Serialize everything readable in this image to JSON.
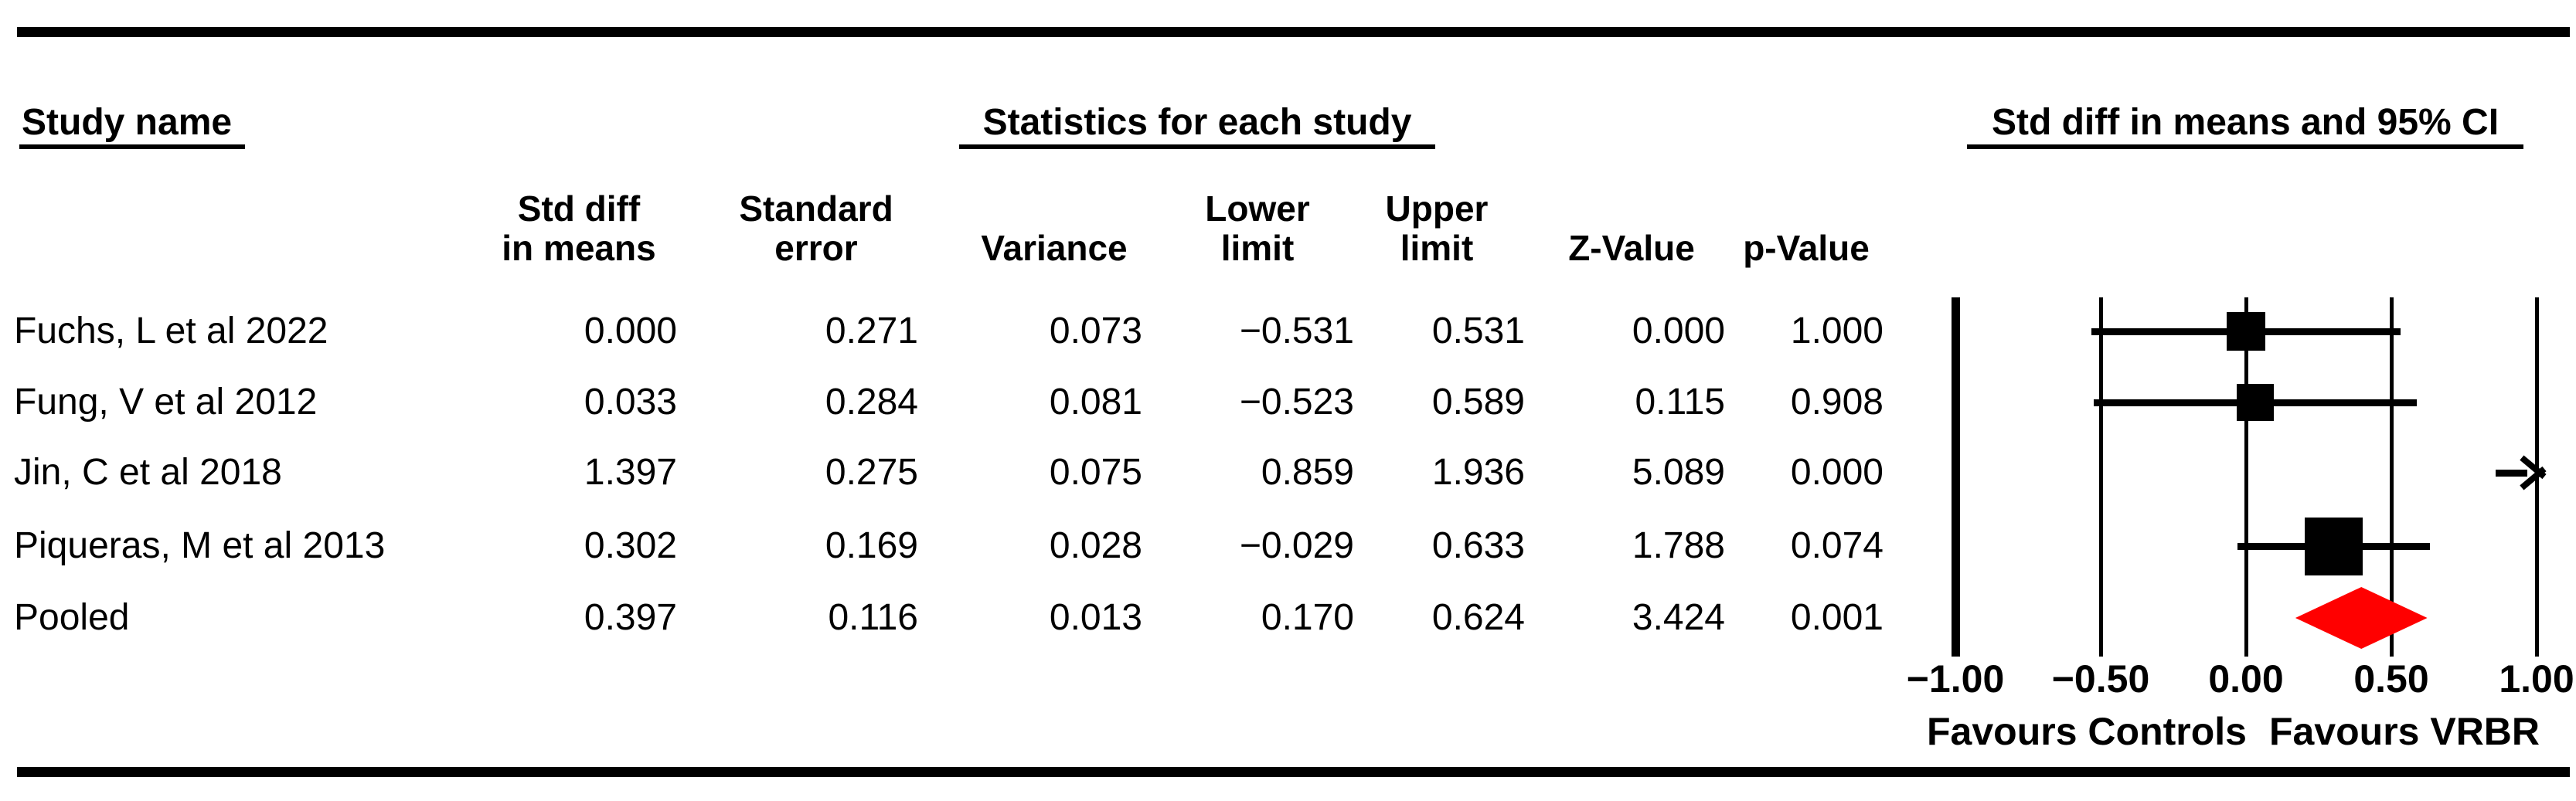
{
  "figure": {
    "section_headers": {
      "study": "Study name",
      "stats": "Statistics for each study",
      "plot": "Std diff in means and 95% CI"
    },
    "columns": {
      "std_diff_1": "Std diff",
      "std_diff_2": "in means",
      "std_err_1": "Standard",
      "std_err_2": "error",
      "variance": "Variance",
      "lower_1": "Lower",
      "lower_2": "limit",
      "upper_1": "Upper",
      "upper_2": "limit",
      "z": "Z-Value",
      "p": "p-Value"
    },
    "rows": [
      {
        "name": "Fuchs, L et al 2022",
        "std_diff": "0.000",
        "std_err": "0.271",
        "variance": "0.073",
        "lower": "−0.531",
        "upper": "0.531",
        "z": "0.000",
        "p": "1.000"
      },
      {
        "name": "Fung, V et al 2012",
        "std_diff": "0.033",
        "std_err": "0.284",
        "variance": "0.081",
        "lower": "−0.523",
        "upper": "0.589",
        "z": "0.115",
        "p": "0.908"
      },
      {
        "name": "Jin, C et al 2018",
        "std_diff": "1.397",
        "std_err": "0.275",
        "variance": "0.075",
        "lower": "0.859",
        "upper": "1.936",
        "z": "5.089",
        "p": "0.000"
      },
      {
        "name": "Piqueras, M et al 2013",
        "std_diff": "0.302",
        "std_err": "0.169",
        "variance": "0.028",
        "lower": "−0.029",
        "upper": "0.633",
        "z": "1.788",
        "p": "0.074"
      },
      {
        "name": "Pooled",
        "std_diff": "0.397",
        "std_err": "0.116",
        "variance": "0.013",
        "lower": "0.170",
        "upper": "0.624",
        "z": "3.424",
        "p": "0.001"
      }
    ]
  },
  "chart_data": {
    "type": "scatter",
    "subtype": "forest_plot",
    "title": "Std diff in means and 95% CI",
    "x_axis": {
      "range": [
        -1,
        1
      ],
      "frame_value": -1,
      "ticks": [
        {
          "label": "−1.00",
          "value": -1
        },
        {
          "label": "−0.50",
          "value": -0.5
        },
        {
          "label": "0.00",
          "value": 0
        },
        {
          "label": "0.50",
          "value": 0.5
        },
        {
          "label": "1.00",
          "value": 1
        }
      ],
      "label_left": "Favours Controls",
      "label_right": "Favours VRBR"
    },
    "grid": true,
    "marker_color": "#000000",
    "pooled_color": "#ff0000",
    "points": [
      {
        "study": "Fuchs, L et al 2022",
        "estimate": 0.0,
        "lower": -0.531,
        "upper": 0.531,
        "marker": "square",
        "marker_size": 50
      },
      {
        "study": "Fung, V et al 2012",
        "estimate": 0.033,
        "lower": -0.523,
        "upper": 0.589,
        "marker": "square",
        "marker_size": 48
      },
      {
        "study": "Jin, C et al 2018",
        "estimate": 1.397,
        "lower": 0.859,
        "upper": 1.936,
        "marker": "arrow_right",
        "marker_size": 0
      },
      {
        "study": "Piqueras, M et al 2013",
        "estimate": 0.302,
        "lower": -0.029,
        "upper": 0.633,
        "marker": "square",
        "marker_size": 75
      },
      {
        "study": "Pooled",
        "estimate": 0.397,
        "lower": 0.17,
        "upper": 0.624,
        "marker": "diamond",
        "marker_size": 80
      }
    ]
  }
}
